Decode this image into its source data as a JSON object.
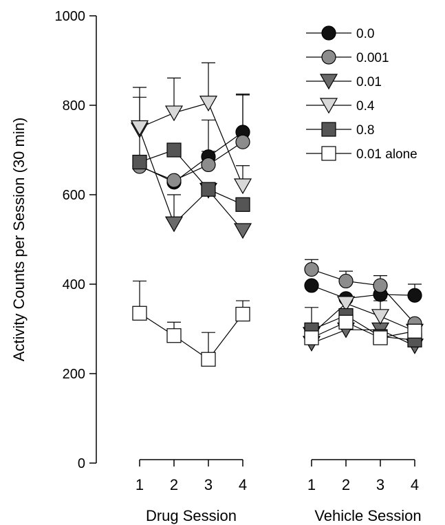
{
  "chart_data": {
    "type": "line",
    "ylabel": "Activity Counts per Session (30 min)",
    "ylim": [
      0,
      1000
    ],
    "yticks": [
      0,
      200,
      400,
      600,
      800,
      1000
    ],
    "panels": [
      {
        "xlabel": "Drug Session",
        "x": [
          "1",
          "2",
          "3",
          "4"
        ]
      },
      {
        "xlabel": "Vehicle Session",
        "x": [
          "1",
          "2",
          "3",
          "4"
        ]
      }
    ],
    "legend_position": "top-right",
    "series": [
      {
        "name": "0.0",
        "marker": "circle",
        "fill": "#111111",
        "drug": [
          665,
          628,
          685,
          740
        ],
        "drug_err": [
          null,
          null,
          12,
          85
        ],
        "vehicle": [
          397,
          368,
          377,
          375
        ],
        "vehicle_err": [
          null,
          null,
          null,
          25
        ]
      },
      {
        "name": "0.001",
        "marker": "circle",
        "fill": "#8c8c8c",
        "drug": [
          663,
          632,
          667,
          718
        ],
        "drug_err": [
          155,
          null,
          100,
          105
        ],
        "vehicle": [
          433,
          407,
          397,
          312
        ],
        "vehicle_err": [
          22,
          22,
          22,
          null
        ]
      },
      {
        "name": "0.01",
        "marker": "triangle-down",
        "fill": "#6a6a6a",
        "drug": [
          745,
          535,
          610,
          520
        ],
        "drug_err": [
          null,
          65,
          null,
          null
        ],
        "vehicle": [
          268,
          298,
          298,
          262
        ],
        "vehicle_err": [
          null,
          null,
          null,
          null
        ]
      },
      {
        "name": "0.4",
        "marker": "triangle-down",
        "fill": "#d8d8d8",
        "drug": [
          750,
          783,
          805,
          620
        ],
        "drug_err": [
          90,
          78,
          90,
          45
        ],
        "vehicle": [
          288,
          357,
          328,
          295
        ],
        "vehicle_err": [
          60,
          null,
          35,
          null
        ]
      },
      {
        "name": "0.8",
        "marker": "square",
        "fill": "#555555",
        "drug": [
          673,
          700,
          612,
          578
        ],
        "drug_err": [
          null,
          null,
          null,
          null
        ],
        "vehicle": [
          298,
          330,
          283,
          275
        ],
        "vehicle_err": [
          null,
          null,
          null,
          null
        ]
      },
      {
        "name": "0.01 alone",
        "marker": "square",
        "fill": "#ffffff",
        "drug": [
          335,
          285,
          232,
          333
        ],
        "drug_err": [
          72,
          30,
          60,
          30
        ],
        "vehicle": [
          280,
          315,
          280,
          295
        ],
        "vehicle_err": [
          null,
          null,
          null,
          null
        ]
      }
    ]
  }
}
